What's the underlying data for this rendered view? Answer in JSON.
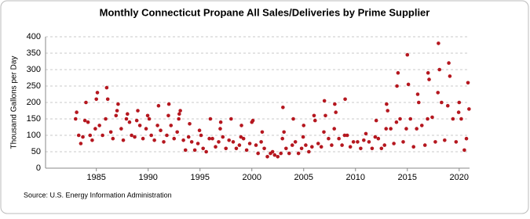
{
  "chart_data": {
    "type": "scatter",
    "title": "Monthly Connecticut Propane All Sales/Deliveries by Prime Supplier",
    "y_label": "Thousand Gallons per Day",
    "source": "Source: U.S. Energy Information Administration",
    "color": "#b5171f",
    "grid": true,
    "xlim": [
      1980.1,
      2021.0
    ],
    "xticks": [
      1985,
      1990,
      1995,
      2000,
      2005,
      2010,
      2015,
      2020
    ],
    "ylim": [
      0,
      400
    ],
    "yticks": [
      0,
      50,
      100,
      150,
      200,
      250,
      300,
      350,
      400
    ],
    "x": [
      1983.0,
      1983.1,
      1983.3,
      1983.5,
      1983.7,
      1983.9,
      1984.0,
      1984.2,
      1984.4,
      1984.6,
      1984.9,
      1985.0,
      1985.1,
      1985.3,
      1985.6,
      1985.9,
      1986.0,
      1986.1,
      1986.4,
      1986.6,
      1986.9,
      1987.0,
      1987.1,
      1987.4,
      1987.6,
      1987.9,
      1988.0,
      1988.2,
      1988.4,
      1988.7,
      1988.9,
      1989.0,
      1989.2,
      1989.5,
      1989.8,
      1989.95,
      1990.1,
      1990.3,
      1990.6,
      1990.9,
      1991.0,
      1991.2,
      1991.5,
      1991.8,
      1991.95,
      1992.0,
      1992.2,
      1992.5,
      1992.8,
      1992.95,
      1993.0,
      1993.1,
      1993.4,
      1993.6,
      1993.9,
      1994.0,
      1994.2,
      1994.5,
      1994.8,
      1994.95,
      1995.1,
      1995.3,
      1995.6,
      1995.9,
      1996.0,
      1996.2,
      1996.5,
      1996.8,
      1996.95,
      1997.0,
      1997.2,
      1997.5,
      1997.8,
      1998.0,
      1998.2,
      1998.5,
      1998.8,
      1998.95,
      1999.0,
      1999.2,
      1999.5,
      1999.8,
      2000.0,
      2000.1,
      2000.4,
      2000.6,
      2000.9,
      2001.0,
      2001.2,
      2001.5,
      2001.8,
      2002.0,
      2002.2,
      2002.5,
      2002.8,
      2002.95,
      2003.0,
      2003.1,
      2003.3,
      2003.6,
      2003.9,
      2004.0,
      2004.2,
      2004.5,
      2004.8,
      2004.95,
      2005.0,
      2005.2,
      2005.5,
      2005.8,
      2006.0,
      2006.1,
      2006.4,
      2006.7,
      2006.95,
      2007.0,
      2007.1,
      2007.4,
      2007.7,
      2007.95,
      2008.0,
      2008.1,
      2008.4,
      2008.7,
      2008.95,
      2009.0,
      2009.2,
      2009.5,
      2009.8,
      2010.2,
      2010.5,
      2010.8,
      2011.0,
      2011.3,
      2011.6,
      2011.9,
      2012.0,
      2012.2,
      2012.5,
      2012.8,
      2012.95,
      2013.0,
      2013.1,
      2013.4,
      2013.7,
      2013.95,
      2014.0,
      2014.1,
      2014.3,
      2014.6,
      2014.9,
      2015.0,
      2015.1,
      2015.3,
      2015.6,
      2015.9,
      2016.0,
      2016.1,
      2016.4,
      2016.7,
      2016.95,
      2017.0,
      2017.1,
      2017.4,
      2017.7,
      2017.95,
      2018.0,
      2018.1,
      2018.3,
      2018.6,
      2018.9,
      2019.0,
      2019.1,
      2019.4,
      2019.7,
      2019.95,
      2020.0,
      2020.2,
      2020.5,
      2020.7,
      2020.85,
      2020.95
    ],
    "values": [
      150,
      170,
      100,
      75,
      95,
      145,
      200,
      140,
      100,
      85,
      120,
      210,
      230,
      130,
      100,
      150,
      245,
      210,
      110,
      90,
      160,
      175,
      195,
      120,
      85,
      150,
      165,
      140,
      100,
      95,
      145,
      175,
      130,
      90,
      120,
      160,
      150,
      100,
      85,
      130,
      190,
      115,
      80,
      100,
      160,
      195,
      130,
      90,
      110,
      150,
      165,
      175,
      85,
      55,
      95,
      135,
      80,
      55,
      75,
      115,
      100,
      60,
      50,
      90,
      150,
      90,
      65,
      80,
      120,
      140,
      95,
      60,
      85,
      150,
      80,
      60,
      70,
      95,
      130,
      90,
      55,
      75,
      140,
      145,
      70,
      45,
      80,
      110,
      60,
      35,
      45,
      50,
      40,
      35,
      45,
      90,
      185,
      110,
      60,
      45,
      70,
      150,
      80,
      45,
      60,
      95,
      130,
      70,
      50,
      65,
      160,
      145,
      75,
      65,
      110,
      205,
      160,
      90,
      70,
      120,
      195,
      170,
      90,
      70,
      100,
      210,
      100,
      65,
      80,
      80,
      60,
      85,
      105,
      80,
      60,
      95,
      145,
      90,
      60,
      70,
      120,
      195,
      175,
      120,
      75,
      140,
      250,
      290,
      150,
      80,
      120,
      345,
      255,
      150,
      65,
      120,
      225,
      200,
      130,
      70,
      150,
      290,
      270,
      155,
      80,
      230,
      380,
      300,
      200,
      85,
      190,
      320,
      280,
      150,
      80,
      170,
      200,
      150,
      55,
      90,
      260,
      180
    ]
  }
}
